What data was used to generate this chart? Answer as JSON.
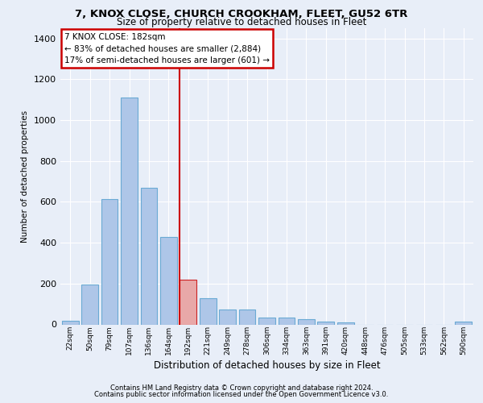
{
  "title1": "7, KNOX CLOSE, CHURCH CROOKHAM, FLEET, GU52 6TR",
  "title2": "Size of property relative to detached houses in Fleet",
  "xlabel": "Distribution of detached houses by size in Fleet",
  "ylabel": "Number of detached properties",
  "bar_labels": [
    "22sqm",
    "50sqm",
    "79sqm",
    "107sqm",
    "136sqm",
    "164sqm",
    "192sqm",
    "221sqm",
    "249sqm",
    "278sqm",
    "306sqm",
    "334sqm",
    "363sqm",
    "391sqm",
    "420sqm",
    "448sqm",
    "476sqm",
    "505sqm",
    "533sqm",
    "562sqm",
    "590sqm"
  ],
  "bar_values": [
    18,
    195,
    615,
    1110,
    670,
    430,
    220,
    130,
    73,
    73,
    32,
    32,
    25,
    15,
    8,
    0,
    0,
    0,
    0,
    0,
    12
  ],
  "bar_color": "#aec6e8",
  "bar_edge_color": "#6aaad4",
  "highlight_bar_index": 6,
  "highlight_bar_color": "#e8a8a8",
  "highlight_bar_edge_color": "#cc2222",
  "vline_color": "#cc0000",
  "annotation_line1": "7 KNOX CLOSE: 182sqm",
  "annotation_line2": "← 83% of detached houses are smaller (2,884)",
  "annotation_line3": "17% of semi-detached houses are larger (601) →",
  "annotation_box_facecolor": "#ffffff",
  "annotation_box_edgecolor": "#cc0000",
  "ylim": [
    0,
    1450
  ],
  "yticks": [
    0,
    200,
    400,
    600,
    800,
    1000,
    1200,
    1400
  ],
  "footer1": "Contains HM Land Registry data © Crown copyright and database right 2024.",
  "footer2": "Contains public sector information licensed under the Open Government Licence v3.0.",
  "fig_bg_color": "#e8eef8",
  "plot_bg_color": "#e8eef8",
  "grid_color": "#ffffff"
}
